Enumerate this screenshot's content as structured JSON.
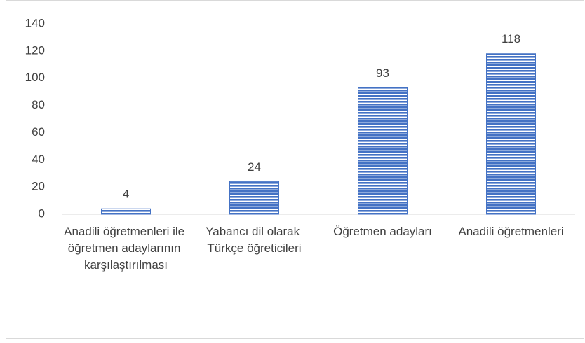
{
  "chart_data": {
    "type": "bar",
    "categories": [
      "Anadili öğretmenleri ile öğretmen adaylarının karşılaştırılması",
      "Yabancı dil olarak Türkçe öğreticileri",
      "Öğretmen adayları",
      "Anadili öğretmenleri"
    ],
    "values": [
      4,
      24,
      93,
      118
    ],
    "color": "#4472c4",
    "ylim": [
      0,
      140
    ],
    "yticks": [
      0,
      20,
      40,
      60,
      80,
      100,
      120,
      140
    ],
    "grid": false
  }
}
